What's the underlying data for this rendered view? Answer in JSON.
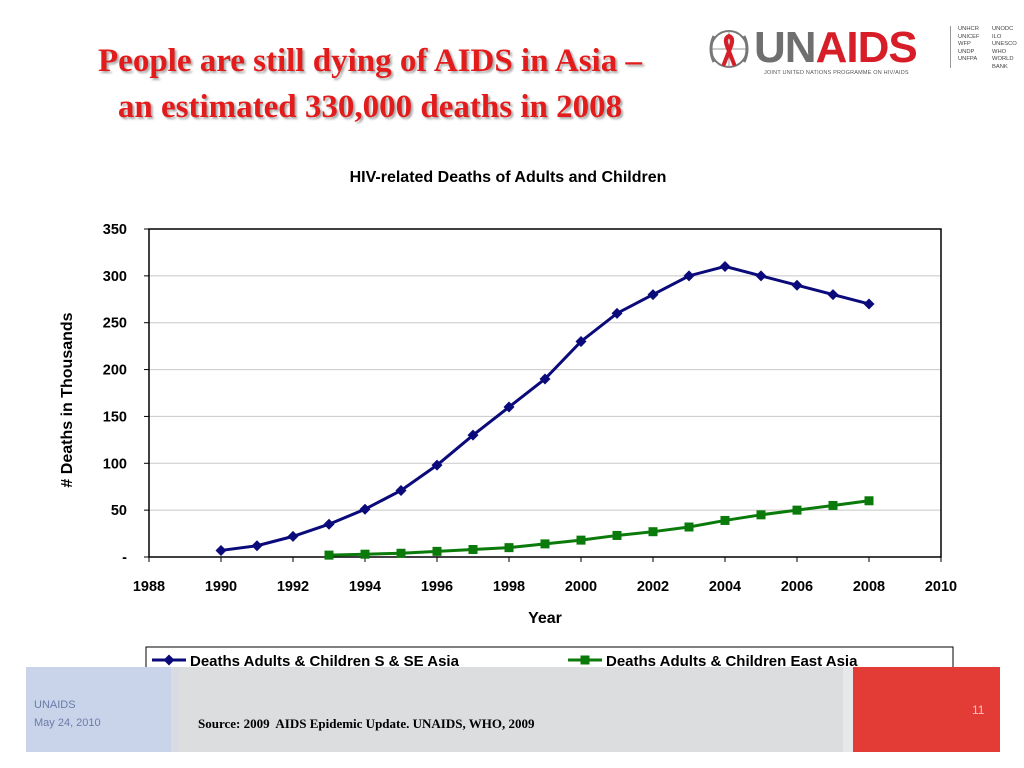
{
  "slide": {
    "title_line1": "People are still dying of AIDS in Asia –",
    "title_line2": "an estimated 330,000 deaths in 2008",
    "footer_org": "UNAIDS",
    "footer_date": "May 24, 2010",
    "source": "Source: 2009  AIDS Epidemic Update. UNAIDS, WHO, 2009",
    "page_number": "11"
  },
  "logo": {
    "word_un": "UN",
    "word_aids": "AIDS",
    "subtitle": "JOINT UNITED NATIONS PROGRAMME ON HIV/AIDS",
    "cosponsors_col1": [
      "UNHCR",
      "UNICEF",
      "WFP",
      "UNDP",
      "UNFPA"
    ],
    "cosponsors_col2": [
      "UNODC",
      "ILO",
      "UNESCO",
      "WHO",
      "WORLD BANK"
    ],
    "ribbon_color": "#d71e28"
  },
  "chart_data": {
    "type": "line",
    "title": "HIV-related Deaths of Adults and Children",
    "xlabel": "Year",
    "ylabel": "# Deaths in Thousands",
    "xlim": [
      1988,
      2010
    ],
    "ylim": [
      0,
      350
    ],
    "x_ticks": [
      "1988",
      "1990",
      "1992",
      "1994",
      "1996",
      "1998",
      "2000",
      "2002",
      "2004",
      "2006",
      "2008",
      "2010"
    ],
    "y_ticks": [
      "-",
      "50",
      "100",
      "150",
      "200",
      "250",
      "300",
      "350"
    ],
    "grid": "horizontal",
    "legend_position": "bottom",
    "series": [
      {
        "name": "Deaths Adults & Children S & SE Asia",
        "color": "#0a0a7a",
        "marker": "diamond",
        "points": [
          [
            1990,
            7
          ],
          [
            1991,
            12
          ],
          [
            1992,
            22
          ],
          [
            1993,
            35
          ],
          [
            1994,
            51
          ],
          [
            1995,
            71
          ],
          [
            1996,
            98
          ],
          [
            1997,
            130
          ],
          [
            1998,
            160
          ],
          [
            1999,
            190
          ],
          [
            2000,
            230
          ],
          [
            2001,
            260
          ],
          [
            2002,
            280
          ],
          [
            2003,
            300
          ],
          [
            2004,
            310
          ],
          [
            2005,
            300
          ],
          [
            2006,
            290
          ],
          [
            2007,
            280
          ],
          [
            2008,
            270
          ]
        ]
      },
      {
        "name": "Deaths Adults & Children East Asia",
        "color": "#0a7a0a",
        "marker": "square",
        "points": [
          [
            1993,
            2
          ],
          [
            1994,
            3
          ],
          [
            1995,
            4
          ],
          [
            1996,
            6
          ],
          [
            1997,
            8
          ],
          [
            1998,
            10
          ],
          [
            1999,
            14
          ],
          [
            2000,
            18
          ],
          [
            2001,
            23
          ],
          [
            2002,
            27
          ],
          [
            2003,
            32
          ],
          [
            2004,
            39
          ],
          [
            2005,
            45
          ],
          [
            2006,
            50
          ],
          [
            2007,
            55
          ],
          [
            2008,
            60
          ]
        ]
      }
    ]
  }
}
